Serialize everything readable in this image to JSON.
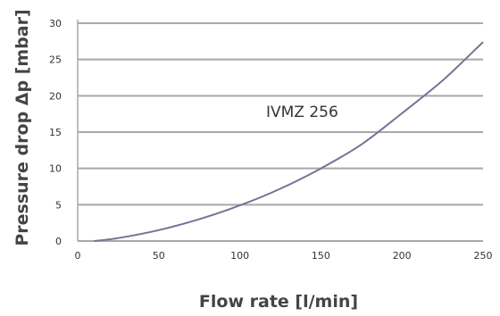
{
  "chart_data": {
    "type": "line",
    "title": "",
    "xlabel": "Flow rate [l/min]",
    "ylabel": "Pressure drop Δp [mbar]",
    "xlim": [
      0,
      250
    ],
    "ylim": [
      0,
      30
    ],
    "xticks": [
      0,
      50,
      100,
      150,
      200,
      250
    ],
    "yticks": [
      0,
      5,
      10,
      15,
      20,
      25,
      30
    ],
    "grid": "horizontal",
    "annotation": "IVMZ 256",
    "series": [
      {
        "x": [
          10,
          25,
          50,
          75,
          100,
          125,
          150,
          175,
          200,
          225,
          250
        ],
        "y": [
          0,
          0.4,
          1.5,
          3.0,
          4.9,
          7.2,
          10.0,
          13.3,
          17.6,
          22.1,
          27.4
        ]
      }
    ],
    "colors": {
      "grid": "#a8a8a8",
      "line": "#7a7196",
      "text": "#333333"
    }
  }
}
